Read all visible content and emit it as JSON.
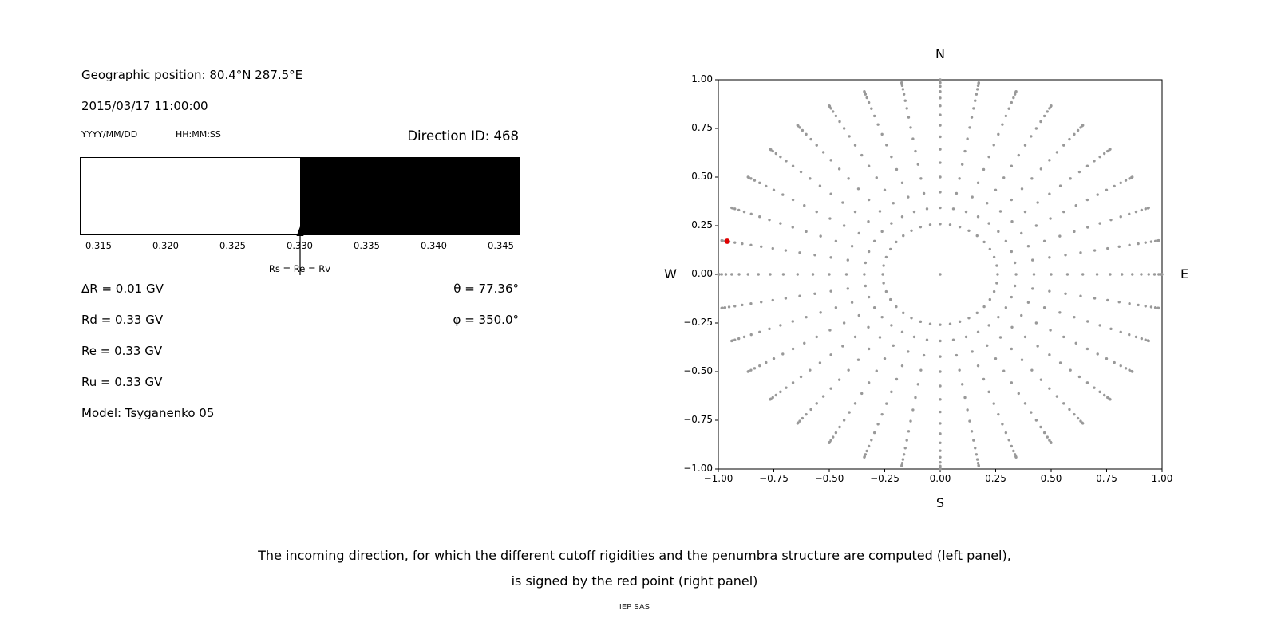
{
  "left_panel": {
    "geo_position": "Geographic position: 80.4°N 287.5°E",
    "datetime": "2015/03/17 11:00:00",
    "date_format": "YYYY/MM/DD",
    "time_format": "HH:MM:SS",
    "direction_id": "Direction ID: 468",
    "params": [
      "ΔR = 0.01 GV",
      "Rd = 0.33 GV",
      "Re = 0.33 GV",
      "Ru = 0.33 GV",
      "Model: Tsyganenko 05"
    ],
    "theta": "θ = 77.36°",
    "phi": "φ = 350.0°"
  },
  "caption": {
    "line1": "The incoming direction, for which the different cutoff rigidities and the penumbra structure are computed (left panel),",
    "line2": "is signed by the red point (right panel)",
    "credit": "IEP SAS"
  },
  "chart_data": [
    {
      "type": "area",
      "name": "penumbra-structure-bar",
      "x_min": 0.3136,
      "x_max": 0.3464,
      "regions": [
        {
          "from": 0.3136,
          "to": 0.33,
          "color": "#ffffff"
        },
        {
          "from": 0.33,
          "to": 0.3464,
          "color": "#000000"
        }
      ],
      "x_tick_values": [
        0.315,
        0.32,
        0.325,
        0.33,
        0.335,
        0.34,
        0.345
      ],
      "x_tick_labels": [
        "0.315",
        "0.320",
        "0.325",
        "0.330",
        "0.335",
        "0.340",
        "0.345"
      ],
      "annotation": {
        "x": 0.33,
        "label": "Rs = Re = Rv"
      }
    },
    {
      "type": "scatter",
      "name": "incoming-direction-map",
      "xlim": [
        -1,
        1
      ],
      "ylim": [
        -1,
        1
      ],
      "x_tick_values": [
        -1,
        -0.75,
        -0.5,
        -0.25,
        0,
        0.25,
        0.5,
        0.75,
        1
      ],
      "x_tick_labels": [
        "−1.00",
        "−0.75",
        "−0.50",
        "−0.25",
        "0.00",
        "0.25",
        "0.50",
        "0.75",
        "1.00"
      ],
      "y_tick_values": [
        1,
        0.75,
        0.5,
        0.25,
        0,
        -0.25,
        -0.5,
        -0.75,
        -1
      ],
      "y_tick_labels": [
        "1.00",
        "0.75",
        "0.50",
        "0.25",
        "0.00",
        "−0.25",
        "−0.50",
        "−0.75",
        "−1.00"
      ],
      "compass": {
        "top": "N",
        "bottom": "S",
        "left": "W",
        "right": "E"
      },
      "grid_dots": {
        "color": "#999999",
        "marker_radius_px": 1.7,
        "azimuth_count": 36,
        "zenith_start_deg": 15,
        "zenith_step_deg": 5,
        "zenith_end_deg": 90,
        "radial_projection": "sin(zenith)",
        "center_dot": true
      },
      "red_point": {
        "x": -0.96,
        "y": 0.17,
        "color": "#e00000",
        "radius_px": 3.4
      }
    }
  ]
}
